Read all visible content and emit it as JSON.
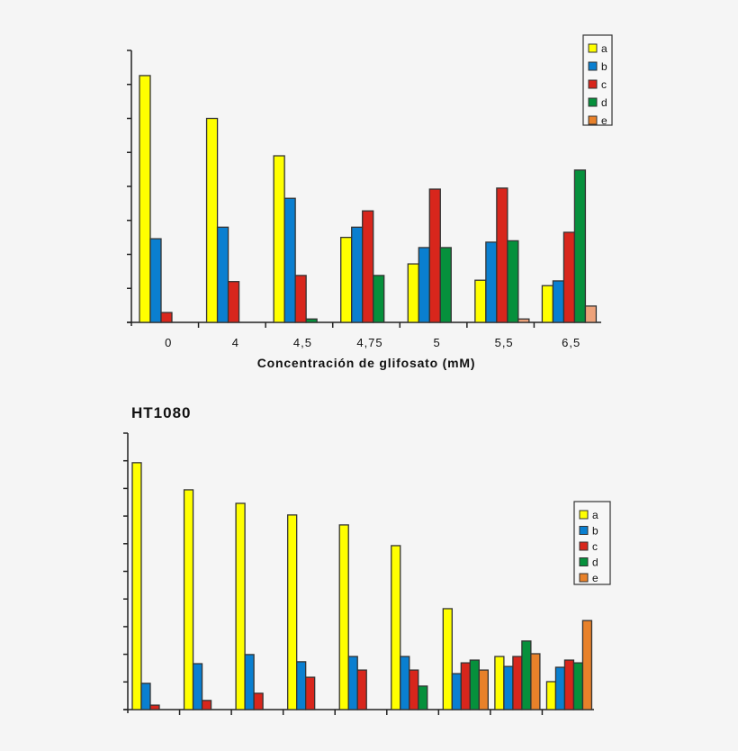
{
  "colors": {
    "a": "#ffff00",
    "b": "#0a7fd0",
    "c": "#d8261c",
    "d": "#06903c",
    "e": "#e8812a",
    "e_top": "#eda27a",
    "background": "#f5f5f5"
  },
  "chart_data": [
    {
      "type": "bar",
      "title": "",
      "xlabel": "Concentración de glifosato (mM)",
      "ylabel": "",
      "categories": [
        "0",
        "4",
        "4,5",
        "4,75",
        "5",
        "5,5",
        "6,5"
      ],
      "ylim": [
        0,
        8
      ],
      "y_tick_count": 8,
      "y_tick_labels_shown": false,
      "legend_position": "top-right",
      "series": [
        {
          "name": "a",
          "values": [
            7.26,
            6.0,
            4.9,
            2.5,
            1.72,
            1.24,
            1.08
          ]
        },
        {
          "name": "b",
          "values": [
            2.46,
            2.8,
            3.65,
            2.8,
            2.2,
            2.36,
            1.22
          ]
        },
        {
          "name": "c",
          "values": [
            0.29,
            1.2,
            1.38,
            3.28,
            3.92,
            3.95,
            2.65
          ]
        },
        {
          "name": "d",
          "values": [
            0,
            0,
            0.1,
            1.38,
            2.2,
            2.4,
            4.48
          ]
        },
        {
          "name": "e",
          "values": [
            0,
            0,
            0,
            0,
            0,
            0.1,
            0.48
          ]
        }
      ]
    },
    {
      "type": "bar",
      "title": "HT1080",
      "xlabel": "",
      "ylabel": "",
      "categories": [
        "",
        "",
        "",
        "",
        "",
        "",
        "",
        "",
        ""
      ],
      "ylim": [
        0,
        10
      ],
      "y_tick_count": 10,
      "y_tick_labels_shown": false,
      "legend_position": "right",
      "series": [
        {
          "name": "a",
          "values": [
            8.93,
            7.95,
            7.46,
            7.04,
            6.68,
            5.93,
            3.65,
            1.92,
            1.01
          ]
        },
        {
          "name": "b",
          "values": [
            0.95,
            1.66,
            1.99,
            1.73,
            1.92,
            1.92,
            1.3,
            1.56,
            1.53
          ]
        },
        {
          "name": "c",
          "values": [
            0.16,
            0.33,
            0.59,
            1.17,
            1.43,
            1.43,
            1.69,
            1.92,
            1.79
          ]
        },
        {
          "name": "d",
          "values": [
            0,
            0,
            0,
            0,
            0,
            0.85,
            1.79,
            2.48,
            1.69
          ]
        },
        {
          "name": "e",
          "values": [
            0,
            0,
            0,
            0,
            0,
            0,
            1.43,
            2.02,
            3.22
          ]
        }
      ]
    }
  ]
}
